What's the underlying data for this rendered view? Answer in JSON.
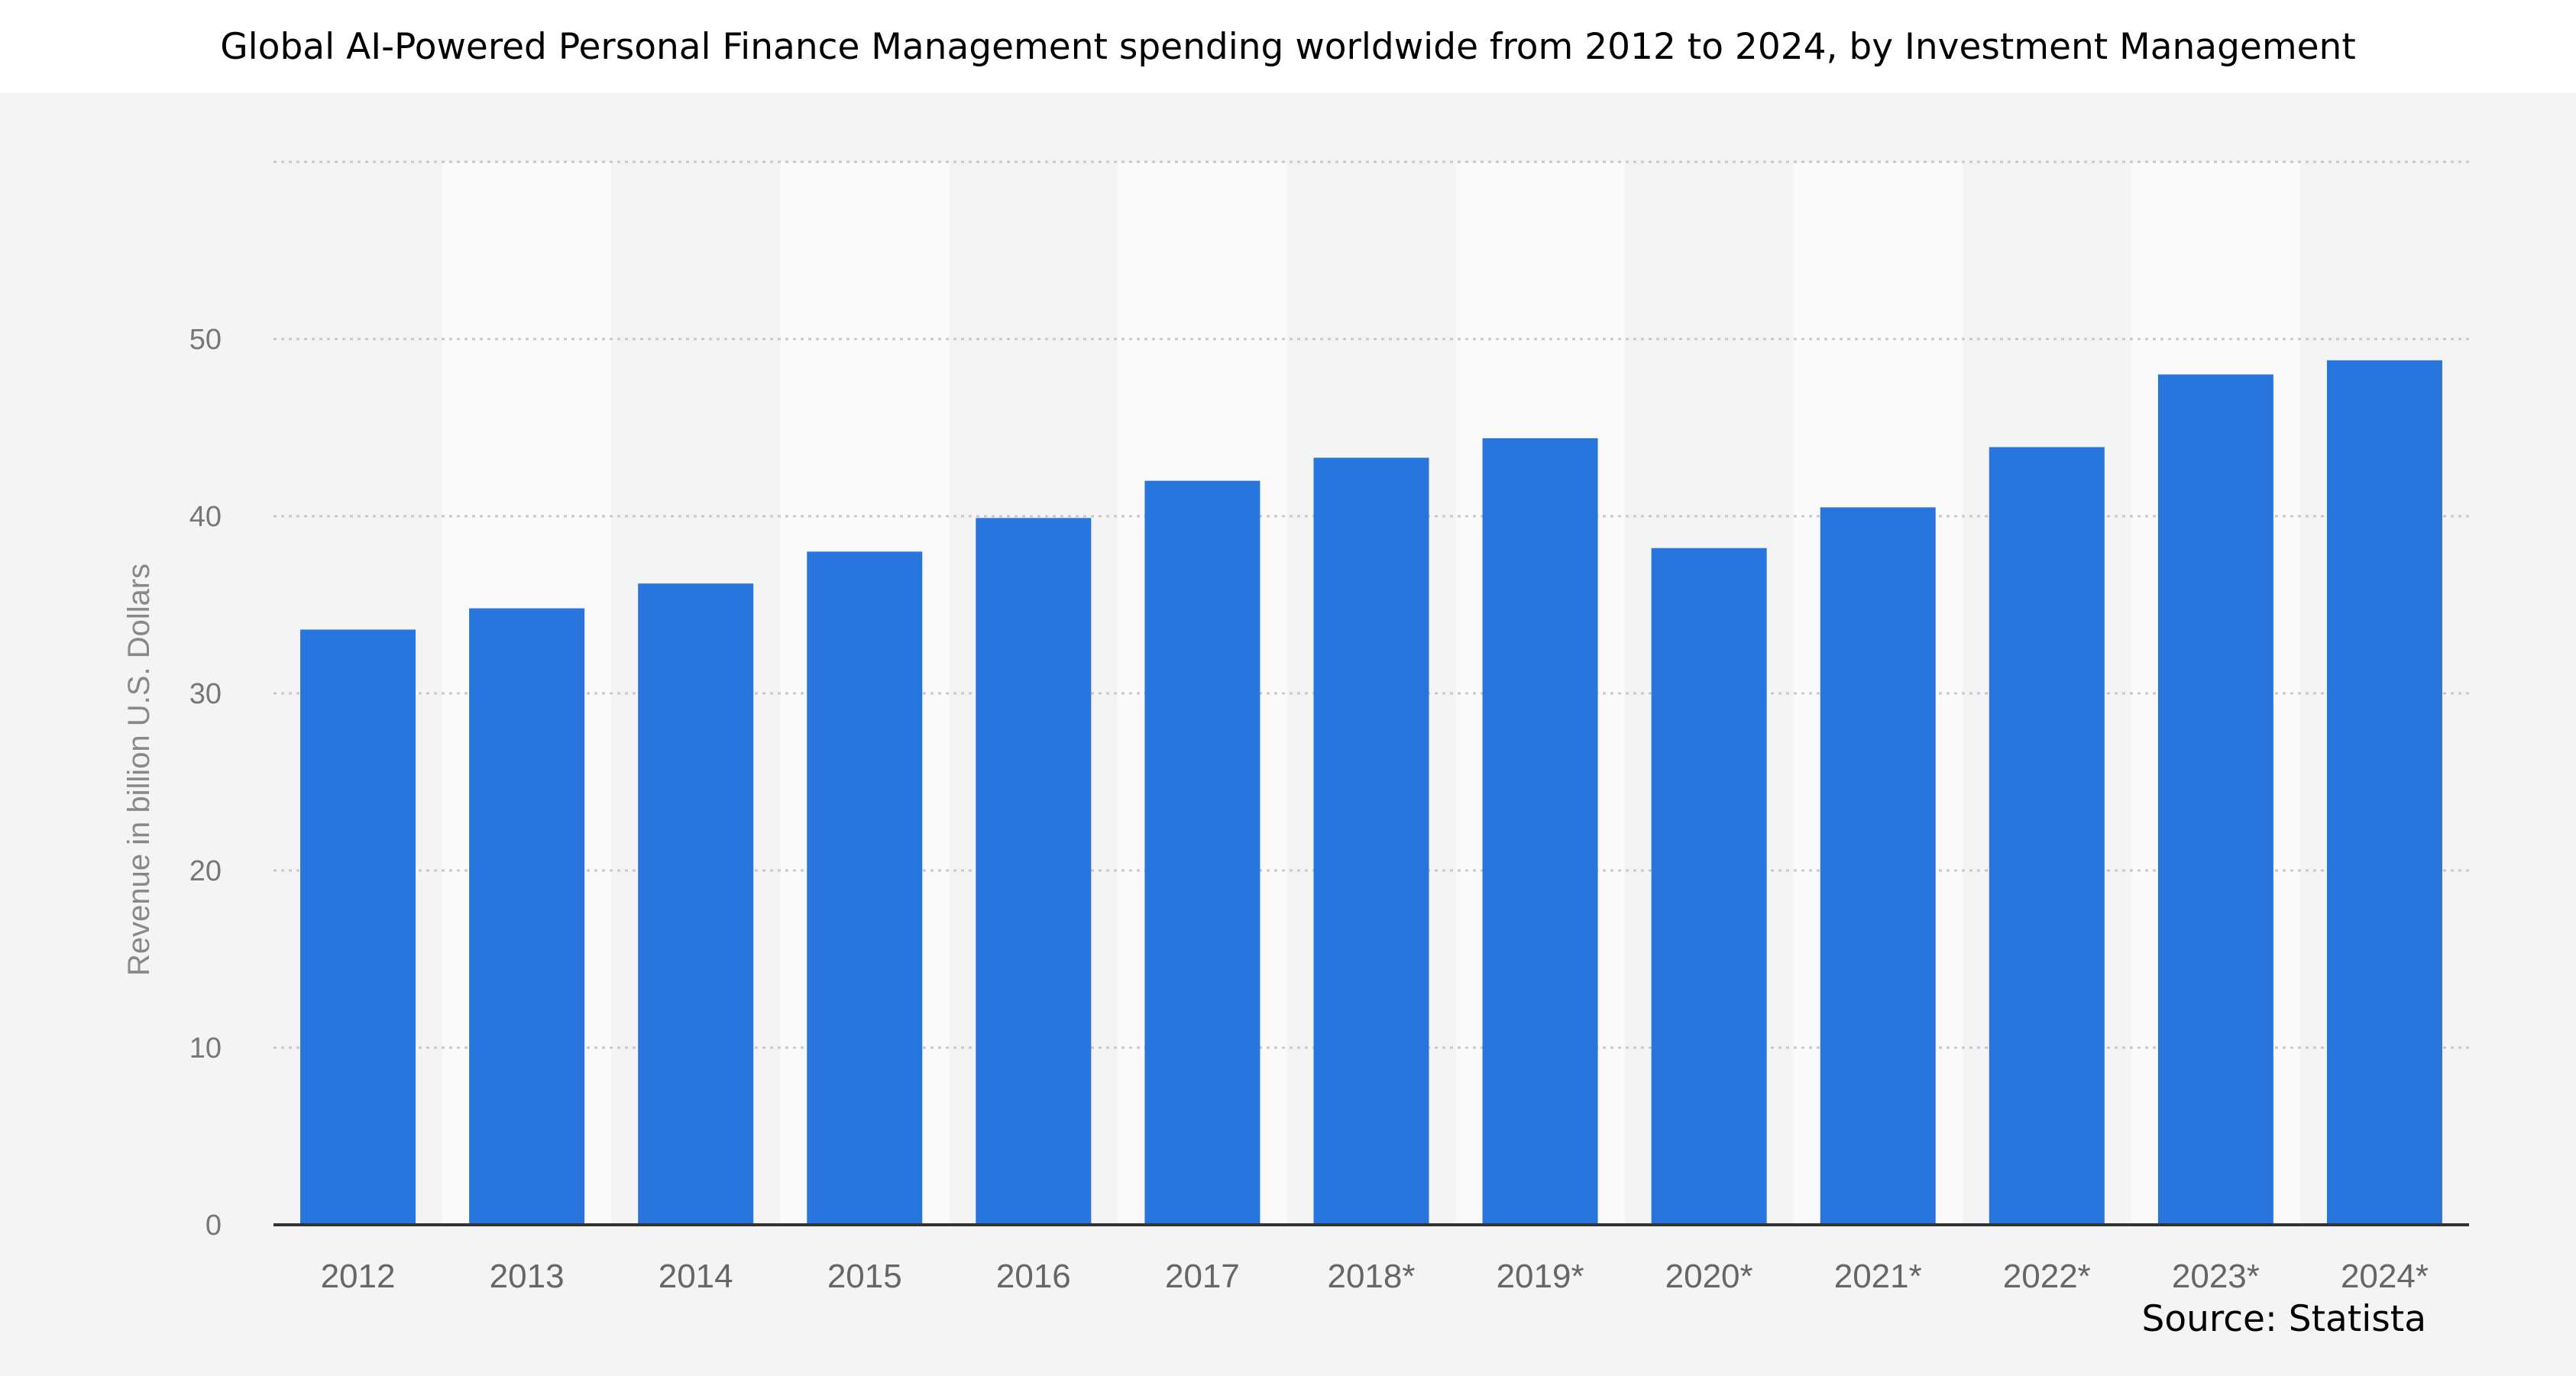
{
  "source": "Source: Statista",
  "colors": {
    "bar": "#2876dd",
    "panel_bg": "#f4f4f4",
    "band_light": "#fafafa",
    "grid": "#c8c8c8",
    "axis": "#333333"
  },
  "chart_data": {
    "type": "bar",
    "title": "Global AI-Powered Personal Finance Management spending worldwide from 2012 to 2024, by Investment Management",
    "xlabel": "",
    "ylabel": "Revenue in billion U.S. Dollars",
    "ylim": [
      0,
      60
    ],
    "yticks": [
      0,
      10,
      20,
      30,
      40,
      50
    ],
    "grid": true,
    "categories": [
      "2012",
      "2013",
      "2014",
      "2015",
      "2016",
      "2017",
      "2018*",
      "2019*",
      "2020*",
      "2021*",
      "2022*",
      "2023*",
      "2024*"
    ],
    "values": [
      33.6,
      34.8,
      36.2,
      38.0,
      39.9,
      42.0,
      43.3,
      44.4,
      38.2,
      40.5,
      43.9,
      48.0,
      48.8
    ]
  }
}
